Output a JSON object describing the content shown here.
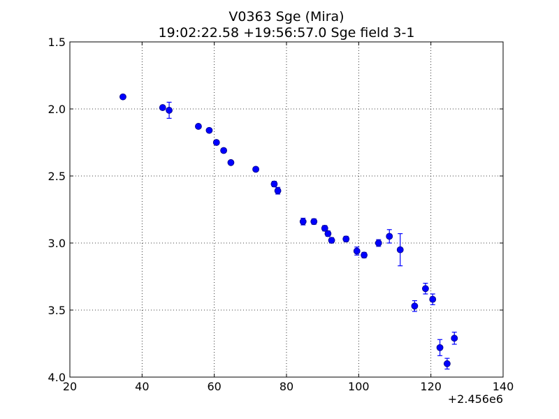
{
  "chart_data": {
    "type": "scatter",
    "title": "V0363 Sge (Mira)",
    "subtitle": "19:02:22.58 +19:56:57.0 Sge field 3-1",
    "x_offset_label": "+2.456e6",
    "xlim": [
      20,
      140
    ],
    "ylim": [
      4.0,
      1.5
    ],
    "y_inverted": true,
    "grid": true,
    "x_ticks": [
      "20",
      "40",
      "60",
      "80",
      "100",
      "120",
      "140"
    ],
    "y_ticks": [
      "1.5",
      "2.0",
      "2.5",
      "3.0",
      "3.5",
      "4.0"
    ],
    "marker_color": "#0000ff",
    "series": [
      {
        "points": [
          {
            "x": 34.7,
            "y": 1.91,
            "err": 0.0
          },
          {
            "x": 45.7,
            "y": 1.99,
            "err": 0.0
          },
          {
            "x": 47.5,
            "y": 2.01,
            "err": 0.06
          },
          {
            "x": 55.6,
            "y": 2.13,
            "err": 0.0
          },
          {
            "x": 58.6,
            "y": 2.16,
            "err": 0.015
          },
          {
            "x": 60.6,
            "y": 2.25,
            "err": 0.01
          },
          {
            "x": 62.6,
            "y": 2.31,
            "err": 0.0
          },
          {
            "x": 64.6,
            "y": 2.4,
            "err": 0.0
          },
          {
            "x": 71.5,
            "y": 2.45,
            "err": 0.0
          },
          {
            "x": 76.6,
            "y": 2.56,
            "err": 0.02
          },
          {
            "x": 77.6,
            "y": 2.61,
            "err": 0.025
          },
          {
            "x": 84.6,
            "y": 2.84,
            "err": 0.025
          },
          {
            "x": 87.6,
            "y": 2.84,
            "err": 0.02
          },
          {
            "x": 90.6,
            "y": 2.89,
            "err": 0.02
          },
          {
            "x": 91.5,
            "y": 2.93,
            "err": 0.02
          },
          {
            "x": 92.5,
            "y": 2.98,
            "err": 0.02
          },
          {
            "x": 96.5,
            "y": 2.97,
            "err": 0.02
          },
          {
            "x": 99.5,
            "y": 3.06,
            "err": 0.03
          },
          {
            "x": 101.5,
            "y": 3.09,
            "err": 0.02
          },
          {
            "x": 105.5,
            "y": 3.0,
            "err": 0.025
          },
          {
            "x": 108.5,
            "y": 2.95,
            "err": 0.05
          },
          {
            "x": 111.5,
            "y": 3.05,
            "err": 0.12
          },
          {
            "x": 115.5,
            "y": 3.47,
            "err": 0.04
          },
          {
            "x": 118.5,
            "y": 3.34,
            "err": 0.04
          },
          {
            "x": 120.5,
            "y": 3.42,
            "err": 0.04
          },
          {
            "x": 122.5,
            "y": 3.78,
            "err": 0.06
          },
          {
            "x": 124.5,
            "y": 3.9,
            "err": 0.04
          },
          {
            "x": 126.5,
            "y": 3.71,
            "err": 0.045
          }
        ]
      }
    ]
  }
}
